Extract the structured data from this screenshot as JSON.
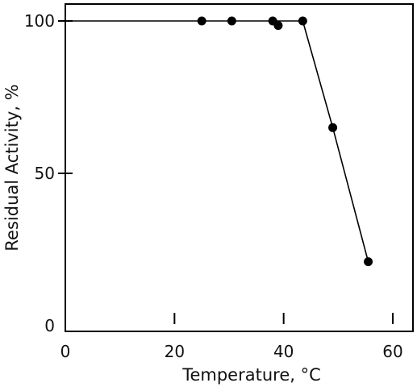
{
  "chart_data": {
    "type": "line",
    "title": "",
    "xlabel": "Temperature, °C",
    "ylabel": "Residual Activity, %",
    "xlim": [
      0,
      62
    ],
    "ylim": [
      0,
      105
    ],
    "x_ticks": [
      0,
      20,
      40,
      60
    ],
    "y_ticks": [
      0,
      50,
      100
    ],
    "grid": false,
    "legend": "none",
    "series": [
      {
        "x": [
          25,
          30.5,
          38,
          39,
          43.5,
          49,
          55.5
        ],
        "y": [
          100,
          100,
          100,
          98.5,
          100,
          65,
          21
        ]
      }
    ],
    "reference_line": {
      "y": 100,
      "x_from": 0,
      "x_to": 43.5
    },
    "colors": {
      "line": "#000000",
      "point": "#000000",
      "axis": "#000000"
    }
  }
}
